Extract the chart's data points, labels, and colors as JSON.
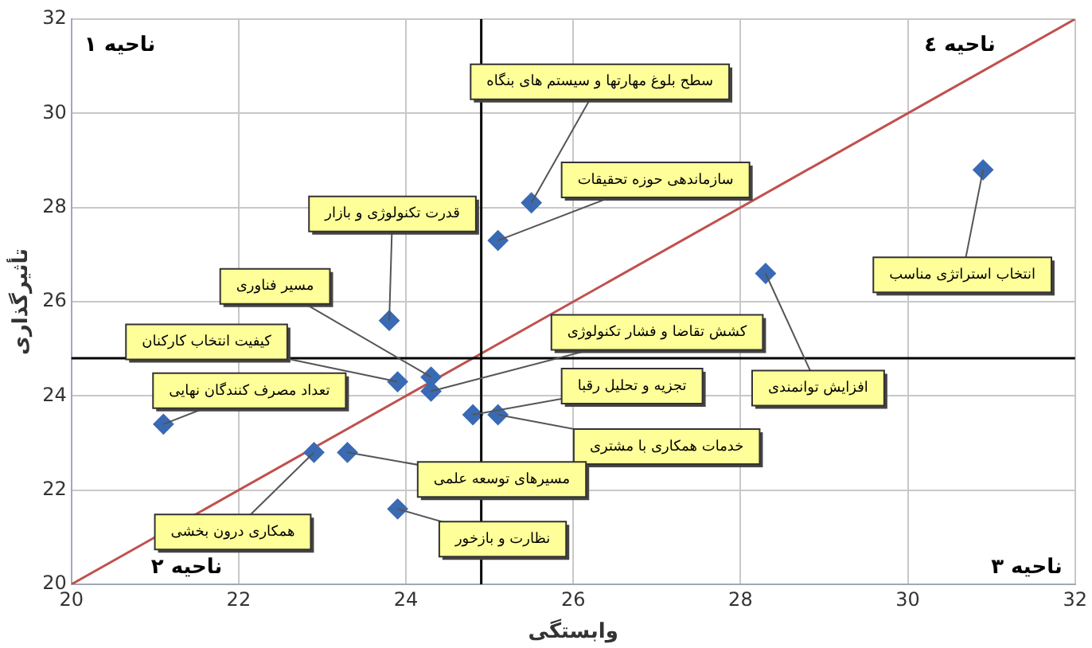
{
  "chart_data": {
    "type": "scatter",
    "xlabel": "وابستگی",
    "ylabel": "تأثیرگذاری",
    "xlim": [
      20,
      32
    ],
    "xticks": [
      20,
      22,
      24,
      26,
      28,
      30,
      32
    ],
    "ylim": [
      20,
      32
    ],
    "yticks": [
      20,
      22,
      24,
      26,
      28,
      30,
      32
    ],
    "grid": true,
    "legend": false,
    "series": [
      {
        "type": "line",
        "color": "#c0504d",
        "marker": "none",
        "x": [
          20,
          32
        ],
        "values": [
          20,
          32
        ]
      },
      {
        "type": "scatter",
        "color": "#3a6ab4",
        "marker": "diamond",
        "x": [
          25.5,
          25.1,
          30.9,
          28.3,
          23.8,
          24.3,
          23.9,
          24.3,
          21.1,
          24.8,
          25.1,
          22.9,
          23.3,
          23.9
        ],
        "values": [
          28.1,
          27.3,
          28.8,
          26.6,
          25.6,
          24.4,
          24.3,
          24.1,
          23.4,
          23.6,
          23.6,
          22.8,
          22.8,
          21.6
        ]
      }
    ],
    "ref_lines": [
      {
        "axis": "x",
        "value": 24.9,
        "color": "#000000"
      },
      {
        "axis": "y",
        "value": 24.8,
        "color": "#000000"
      }
    ],
    "annotations": [
      {
        "text": "سطح بلوغ مهارتها و سیستم های بنگاه",
        "x": 25.5,
        "y": 28.1
      },
      {
        "text": "سازماندهی حوزه تحقیقات",
        "x": 25.1,
        "y": 27.3
      },
      {
        "text": "انتخاب استراتژی مناسب",
        "x": 30.9,
        "y": 28.8
      },
      {
        "text": "افزایش توانمندی",
        "x": 28.3,
        "y": 26.6
      },
      {
        "text": "قدرت تکنولوژی و بازار",
        "x": 23.8,
        "y": 25.6
      },
      {
        "text": "مسیر فناوری",
        "x": 24.3,
        "y": 24.4
      },
      {
        "text": "کیفیت انتخاب کارکنان",
        "x": 23.9,
        "y": 24.3
      },
      {
        "text": "کشش تقاضا و فشار تکنولوژی",
        "x": 24.3,
        "y": 24.1
      },
      {
        "text": "تعداد مصرف کنندگان نهایی",
        "x": 21.1,
        "y": 23.4
      },
      {
        "text": "تجزیه و تحلیل رقبا",
        "x": 24.8,
        "y": 23.6
      },
      {
        "text": "خدمات همکاری با مشتری",
        "x": 25.1,
        "y": 23.6
      },
      {
        "text": "همکاری درون بخشی",
        "x": 22.9,
        "y": 22.8
      },
      {
        "text": "مسیرهای توسعه علمی",
        "x": 23.3,
        "y": 22.8
      },
      {
        "text": "نظارت و بازخور",
        "x": 23.9,
        "y": 21.6
      },
      "ناحیه ۱",
      "ناحیه ۲",
      "ناحیه ۳",
      "ناحیه ٤"
    ]
  }
}
